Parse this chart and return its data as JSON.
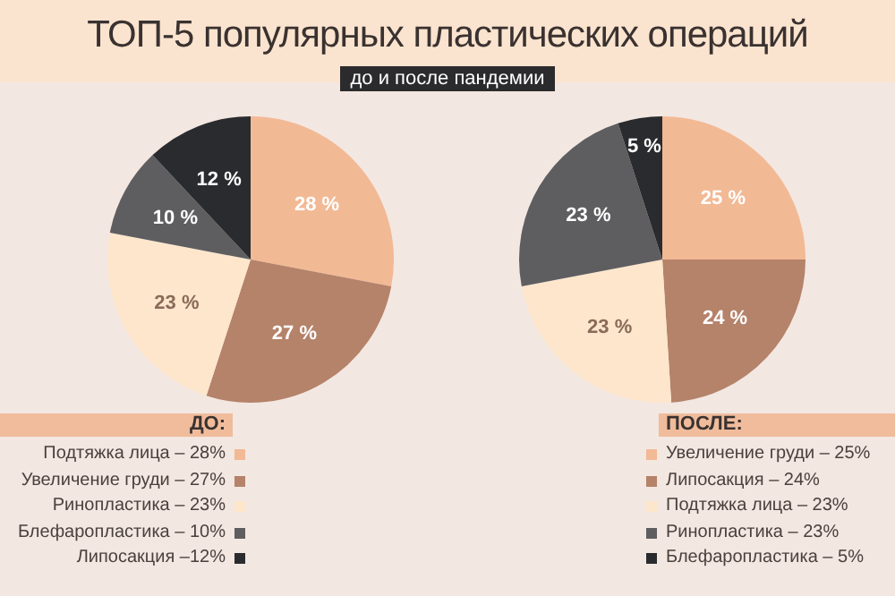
{
  "chart_data": [
    {
      "type": "pie",
      "title": "ТОП-5 популярных пластических операций",
      "subtitle": "до и после пандемии",
      "legend_title": "ДО:",
      "legend": "bottom left",
      "categories": [
        "Подтяжка лица – 28%",
        "Увеличение груди – 27%",
        "Ринопластика – 23%",
        "Блефаропластика – 10%",
        "Липосакция –12%"
      ],
      "values": [
        28,
        27,
        23,
        10,
        12
      ],
      "colors": [
        "#f2b995",
        "#b5826a",
        "#fde6cc",
        "#5e5e60",
        "#2a2b2e"
      ],
      "value_labels": [
        "28 %",
        "27 %",
        "23 %",
        "10 %",
        "12 %"
      ]
    },
    {
      "type": "pie",
      "legend_title": "ПОСЛЕ:",
      "legend": "bottom right",
      "categories": [
        "Увеличение груди – 25%",
        "Липосакция – 24%",
        "Подтяжка лица – 23%",
        "Ринопластика – 23%",
        "Блефаропластика – 5%"
      ],
      "values": [
        25,
        24,
        23,
        23,
        5
      ],
      "colors": [
        "#f2b995",
        "#b5826a",
        "#fde6cc",
        "#5e5e60",
        "#2a2b2e"
      ],
      "value_labels": [
        "25 %",
        "24 %",
        "23 %",
        "23 %",
        "5 %"
      ]
    }
  ]
}
